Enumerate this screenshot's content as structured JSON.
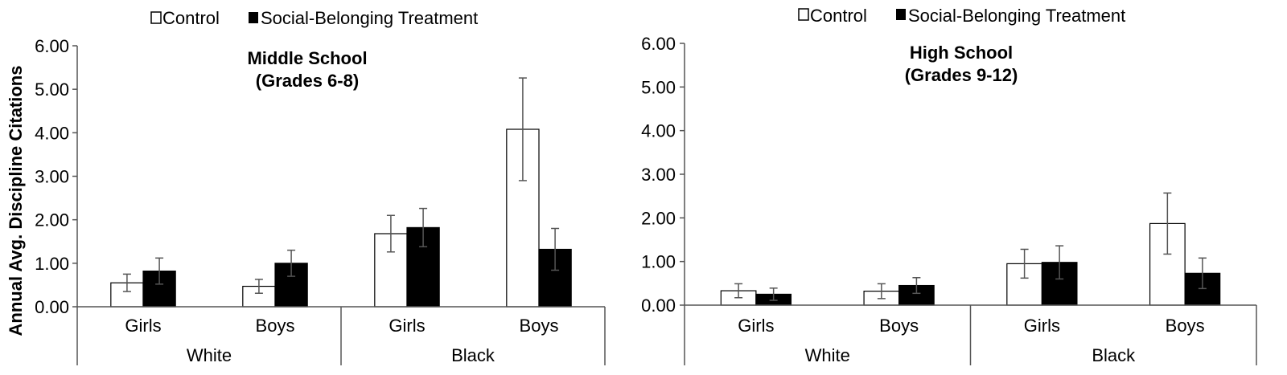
{
  "legend": {
    "control": "Control",
    "treatment": "Social-Belonging Treatment"
  },
  "ylabel": "Annual Avg. Discipline Citations",
  "colors": {
    "control": "#ffffff",
    "treatment": "#000000",
    "axis": "#555555",
    "error": "#555555"
  },
  "chart_data": [
    {
      "type": "bar",
      "title_line1": "Middle School",
      "title_line2": "(Grades 6-8)",
      "ylim": [
        0,
        6
      ],
      "yticks": [
        "0.00",
        "1.00",
        "2.00",
        "3.00",
        "4.00",
        "5.00",
        "6.00"
      ],
      "groups": [
        "White",
        "Black"
      ],
      "categories": [
        "Girls",
        "Boys",
        "Girls",
        "Boys"
      ],
      "series": [
        {
          "name": "Control",
          "values": [
            0.55,
            0.47,
            1.68,
            4.08
          ],
          "error": [
            0.2,
            0.16,
            0.42,
            1.18
          ]
        },
        {
          "name": "Social-Belonging Treatment",
          "values": [
            0.82,
            1.0,
            1.82,
            1.32
          ],
          "error": [
            0.3,
            0.3,
            0.44,
            0.48
          ]
        }
      ]
    },
    {
      "type": "bar",
      "title_line1": "High School",
      "title_line2": "(Grades 9-12)",
      "ylim": [
        0,
        6
      ],
      "yticks": [
        "0.00",
        "1.00",
        "2.00",
        "3.00",
        "4.00",
        "5.00",
        "6.00"
      ],
      "groups": [
        "White",
        "Black"
      ],
      "categories": [
        "Girls",
        "Boys",
        "Girls",
        "Boys"
      ],
      "series": [
        {
          "name": "Control",
          "values": [
            0.33,
            0.32,
            0.95,
            1.87
          ],
          "error": [
            0.16,
            0.17,
            0.33,
            0.7
          ]
        },
        {
          "name": "Social-Belonging Treatment",
          "values": [
            0.25,
            0.45,
            0.98,
            0.73
          ],
          "error": [
            0.14,
            0.18,
            0.38,
            0.35
          ]
        }
      ]
    }
  ]
}
